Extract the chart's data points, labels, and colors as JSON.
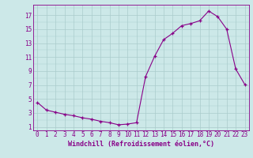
{
  "x": [
    0,
    1,
    2,
    3,
    4,
    5,
    6,
    7,
    8,
    9,
    10,
    11,
    12,
    13,
    14,
    15,
    16,
    17,
    18,
    19,
    20,
    21,
    22,
    23
  ],
  "y": [
    4.5,
    3.4,
    3.1,
    2.8,
    2.6,
    2.3,
    2.1,
    1.8,
    1.6,
    1.3,
    1.4,
    1.6,
    8.2,
    11.1,
    13.5,
    14.4,
    15.5,
    15.8,
    16.2,
    17.6,
    16.8,
    15.0,
    9.3,
    7.1
  ],
  "line_color": "#880088",
  "marker": "+",
  "marker_size": 3,
  "bg_color": "#cce8e8",
  "grid_color": "#aacccc",
  "xlabel": "Windchill (Refroidissement éolien,°C)",
  "ytick_vals": [
    1,
    3,
    5,
    7,
    9,
    11,
    13,
    15,
    17
  ],
  "xtick_labels": [
    "0",
    "1",
    "2",
    "3",
    "4",
    "5",
    "6",
    "7",
    "8",
    "9",
    "10",
    "11",
    "12",
    "13",
    "14",
    "15",
    "16",
    "17",
    "18",
    "19",
    "20",
    "21",
    "22",
    "23"
  ],
  "ylim": [
    0.5,
    18.5
  ],
  "xlim": [
    -0.5,
    23.5
  ],
  "linewidth": 0.8,
  "tick_fontsize": 5.5,
  "xlabel_fontsize": 6.0
}
